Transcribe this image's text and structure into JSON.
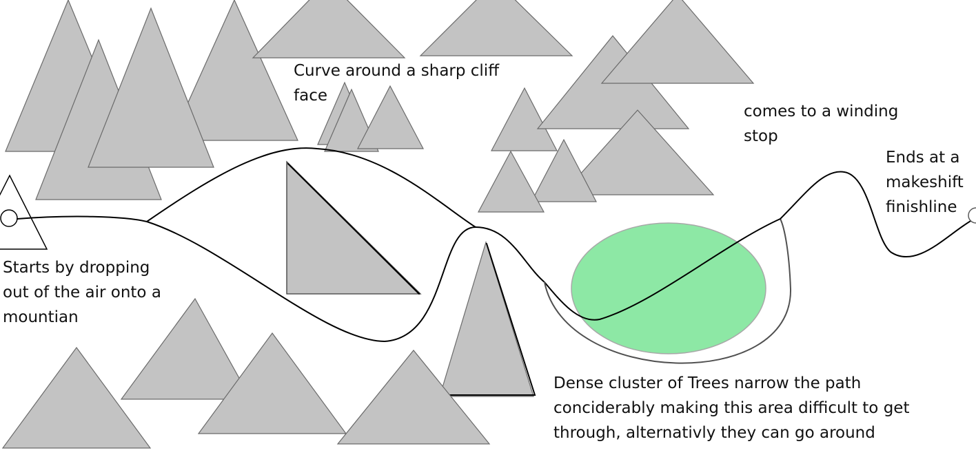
{
  "colors": {
    "tree_fill": "#c3c3c3",
    "tree_stroke": "#6a6a6a",
    "cluster_fill": "#8de8a5",
    "cluster_stroke": "#a8a8a8",
    "track": "#000000",
    "alternate_track": "#505050",
    "text": "#111111"
  },
  "annotations": {
    "start": "Starts by dropping\nout of the air onto a\nmountian",
    "cliff": "Curve around a sharp cliff\nface",
    "winding_stop": "comes to a winding\nstop",
    "finish": "Ends at a\nmakeshift\nfinishline",
    "dense_trees": "Dense cluster of Trees narrow the path\nconciderably making this area difficult to get\nthrough, alternativly they can go around"
  }
}
